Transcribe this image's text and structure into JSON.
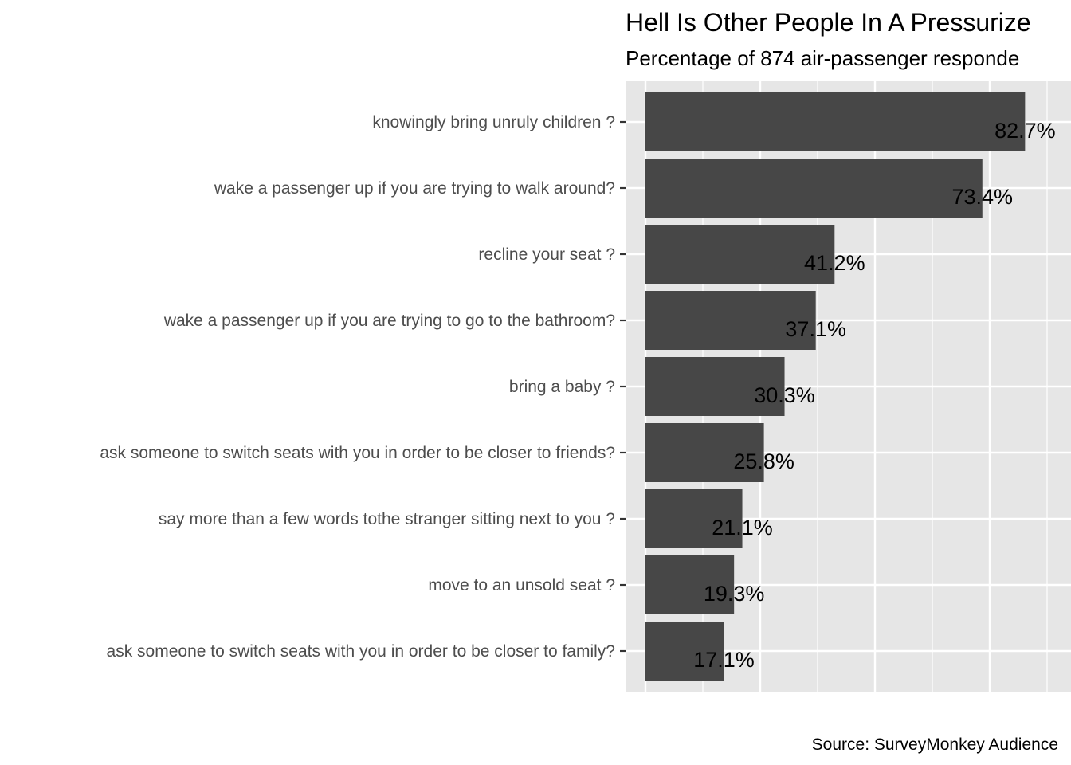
{
  "chart_data": {
    "type": "bar",
    "orientation": "horizontal",
    "title": "Hell Is Other People In A Pressurize",
    "subtitle": "Percentage of 874 air-passenger responde",
    "caption": "Source: SurveyMonkey Audience",
    "categories": [
      "knowingly bring unruly children ?",
      "wake a passenger up if you are trying to walk around?",
      "recline your seat ?",
      "wake a passenger up if you are trying to go to the bathroom?",
      "bring a baby ?",
      "ask someone to switch seats with you in order to be closer to friends?",
      "say more than a few words tothe stranger sitting next to you ?",
      "move to an unsold seat ?",
      "ask someone to switch seats with you in order to be closer to family?"
    ],
    "values": [
      82.7,
      73.4,
      41.2,
      37.1,
      30.3,
      25.8,
      21.1,
      19.3,
      17.1
    ],
    "labels": [
      "82.7%",
      "73.4%",
      "41.2%",
      "37.1%",
      "30.3%",
      "25.8%",
      "21.1%",
      "19.3%",
      "17.1%"
    ],
    "xlim": [
      -4.3,
      91.2
    ],
    "x_major_ticks": [
      0,
      25,
      50,
      75
    ],
    "x_minor_ticks": [
      12.5,
      37.5,
      62.5,
      87.5
    ],
    "x_tick_labels_shown": false,
    "grid": true,
    "legend": "none",
    "colors": {
      "bar": "#474747",
      "panel": "#e6e6e6",
      "grid": "#ffffff"
    }
  }
}
